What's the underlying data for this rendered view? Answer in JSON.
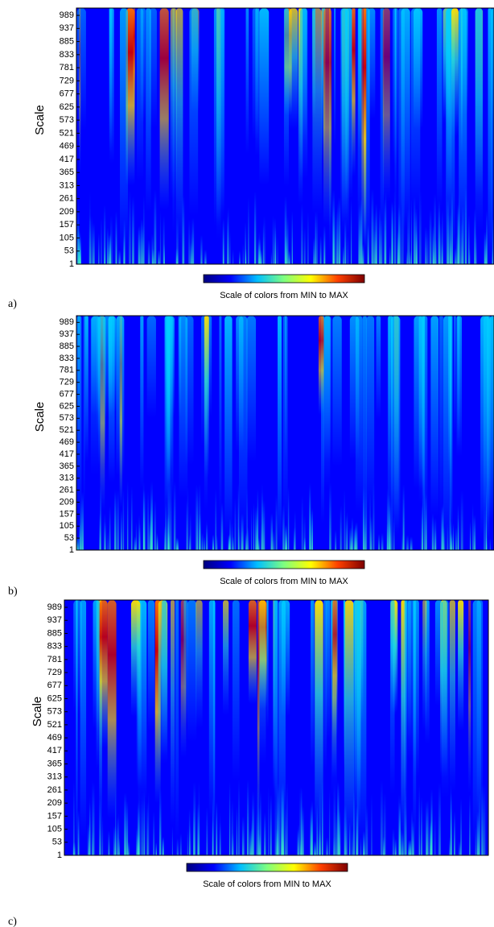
{
  "chart_data": [
    {
      "type": "heatmap",
      "panel_label": "a)",
      "y_label": "Scale",
      "ylim": [
        1,
        1018
      ],
      "yticks": [
        1,
        53,
        105,
        157,
        209,
        261,
        313,
        365,
        417,
        469,
        521,
        573,
        625,
        677,
        729,
        781,
        833,
        885,
        937,
        989
      ],
      "colorbar_label": "Scale of colors from MIN to MAX",
      "colormap": [
        "#00007f",
        "#0000ff",
        "#00bfff",
        "#7fff7f",
        "#ffff00",
        "#ff4000",
        "#7f0000"
      ]
    },
    {
      "type": "heatmap",
      "panel_label": "b)",
      "y_label": "Scale",
      "ylim": [
        1,
        1018
      ],
      "yticks": [
        1,
        53,
        105,
        157,
        209,
        261,
        313,
        365,
        417,
        469,
        521,
        573,
        625,
        677,
        729,
        781,
        833,
        885,
        937,
        989
      ],
      "colorbar_label": "Scale of colors from MIN to MAX",
      "colormap": [
        "#00007f",
        "#0000ff",
        "#00bfff",
        "#7fff7f",
        "#ffff00",
        "#ff4000",
        "#7f0000"
      ]
    },
    {
      "type": "heatmap",
      "panel_label": "c)",
      "y_label": "Scale",
      "ylim": [
        1,
        1018
      ],
      "yticks": [
        1,
        53,
        105,
        157,
        209,
        261,
        313,
        365,
        417,
        469,
        521,
        573,
        625,
        677,
        729,
        781,
        833,
        885,
        937,
        989
      ],
      "colorbar_label": "Scale of colors from MIN to MAX",
      "colormap": [
        "#00007f",
        "#0000ff",
        "#00bfff",
        "#7fff7f",
        "#ffff00",
        "#ff4000",
        "#7f0000"
      ]
    }
  ]
}
